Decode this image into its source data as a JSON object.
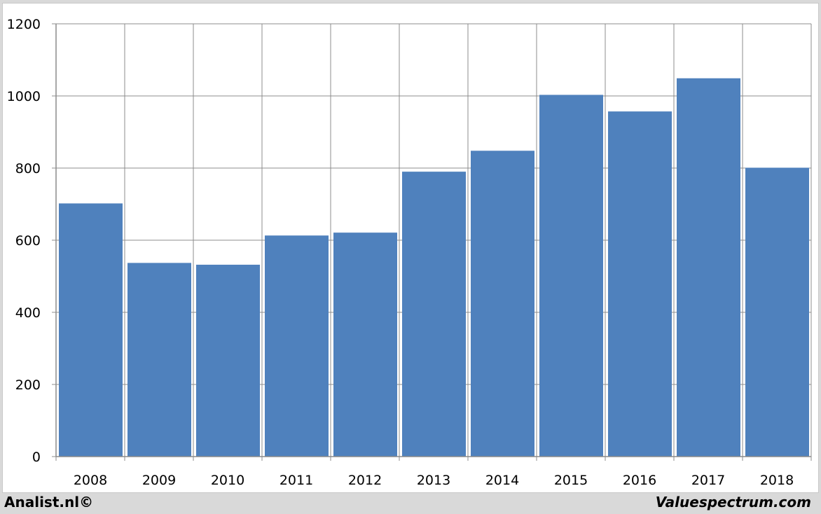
{
  "footer": {
    "left_text": "Analist.nl©",
    "right_text": "Valuespectrum.com"
  },
  "colors": {
    "bar": "#4f81bd",
    "grid": "#8c8c8c",
    "background": "#ffffff",
    "frame": "#d9d9d9"
  },
  "chart_data": {
    "type": "bar",
    "title": "",
    "xlabel": "",
    "ylabel": "",
    "categories": [
      "2008",
      "2009",
      "2010",
      "2011",
      "2012",
      "2013",
      "2014",
      "2015",
      "2016",
      "2017",
      "2018"
    ],
    "values": [
      702,
      537,
      532,
      613,
      621,
      790,
      848,
      1003,
      957,
      1049,
      801
    ],
    "ylim": [
      0,
      1200
    ],
    "yticks": [
      "0",
      "200",
      "400",
      "600",
      "800",
      "1000",
      "1200"
    ],
    "grid": true,
    "legend": "none"
  }
}
